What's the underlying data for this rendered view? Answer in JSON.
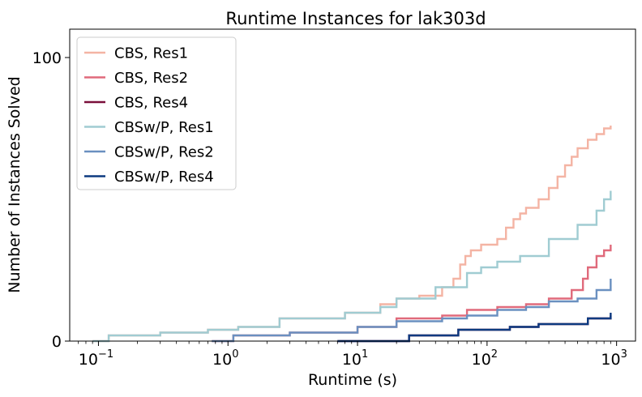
{
  "chart_data": {
    "type": "line",
    "title": "Runtime Instances for lak303d",
    "xlabel": "Runtime (s)",
    "ylabel": "Number of Instances Solved",
    "xscale": "log",
    "xlim": [
      0.06,
      1400
    ],
    "ylim": [
      0,
      110
    ],
    "xticks": [
      {
        "value": 0.1,
        "base": "10",
        "exp": "−1"
      },
      {
        "value": 1,
        "base": "10",
        "exp": "0"
      },
      {
        "value": 10,
        "base": "10",
        "exp": "1"
      },
      {
        "value": 100,
        "base": "10",
        "exp": "2"
      },
      {
        "value": 1000,
        "base": "10",
        "exp": "3"
      }
    ],
    "yticks": [
      {
        "value": 0,
        "label": "0"
      },
      {
        "value": 100,
        "label": "100"
      }
    ],
    "grid": false,
    "legend_position": "top-left",
    "series": [
      {
        "name": "CBS, Res1",
        "color": "#f4b4a4",
        "x": [
          0.09,
          0.12,
          0.3,
          0.7,
          1.2,
          2.5,
          8,
          15,
          20,
          30,
          45,
          55,
          62,
          68,
          75,
          90,
          120,
          140,
          160,
          180,
          200,
          250,
          300,
          350,
          400,
          450,
          500,
          600,
          700,
          800,
          900
        ],
        "y": [
          0,
          2,
          3,
          4,
          5,
          8,
          10,
          13,
          15,
          16,
          19,
          22,
          27,
          30,
          32,
          34,
          36,
          40,
          43,
          45,
          47,
          50,
          54,
          58,
          62,
          65,
          68,
          71,
          73,
          75,
          76
        ]
      },
      {
        "name": "CBS, Res2",
        "color": "#e06a7b",
        "x": [
          0.75,
          1.1,
          3,
          10,
          20,
          45,
          70,
          120,
          200,
          300,
          450,
          550,
          600,
          700,
          800,
          900
        ],
        "y": [
          0,
          2,
          3,
          5,
          8,
          9,
          11,
          12,
          13,
          15,
          18,
          22,
          26,
          30,
          32,
          34
        ]
      },
      {
        "name": "CBS, Res4",
        "color": "#7a0f3a",
        "x": [
          7,
          25,
          60,
          150,
          250,
          600,
          900
        ],
        "y": [
          0,
          2,
          4,
          5,
          6,
          8,
          9
        ]
      },
      {
        "name": "CBSw/P, Res1",
        "color": "#a0ccd2",
        "x": [
          0.09,
          0.12,
          0.3,
          0.7,
          1.2,
          2.5,
          8,
          15,
          20,
          40,
          70,
          90,
          120,
          180,
          300,
          500,
          700,
          800,
          900
        ],
        "y": [
          0,
          2,
          3,
          4,
          5,
          8,
          10,
          12,
          15,
          19,
          24,
          26,
          28,
          30,
          36,
          41,
          46,
          50,
          53
        ]
      },
      {
        "name": "CBSw/P, Res2",
        "color": "#6a90c0",
        "x": [
          0.75,
          1.1,
          3,
          10,
          20,
          45,
          70,
          120,
          200,
          300,
          500,
          700,
          900
        ],
        "y": [
          0,
          2,
          3,
          5,
          7,
          8,
          9,
          11,
          12,
          14,
          15,
          18,
          22
        ]
      },
      {
        "name": "CBSw/P, Res4",
        "color": "#0d3a80",
        "x": [
          7,
          25,
          60,
          150,
          250,
          600,
          900
        ],
        "y": [
          0,
          2,
          4,
          5,
          6,
          8,
          10
        ]
      }
    ]
  }
}
